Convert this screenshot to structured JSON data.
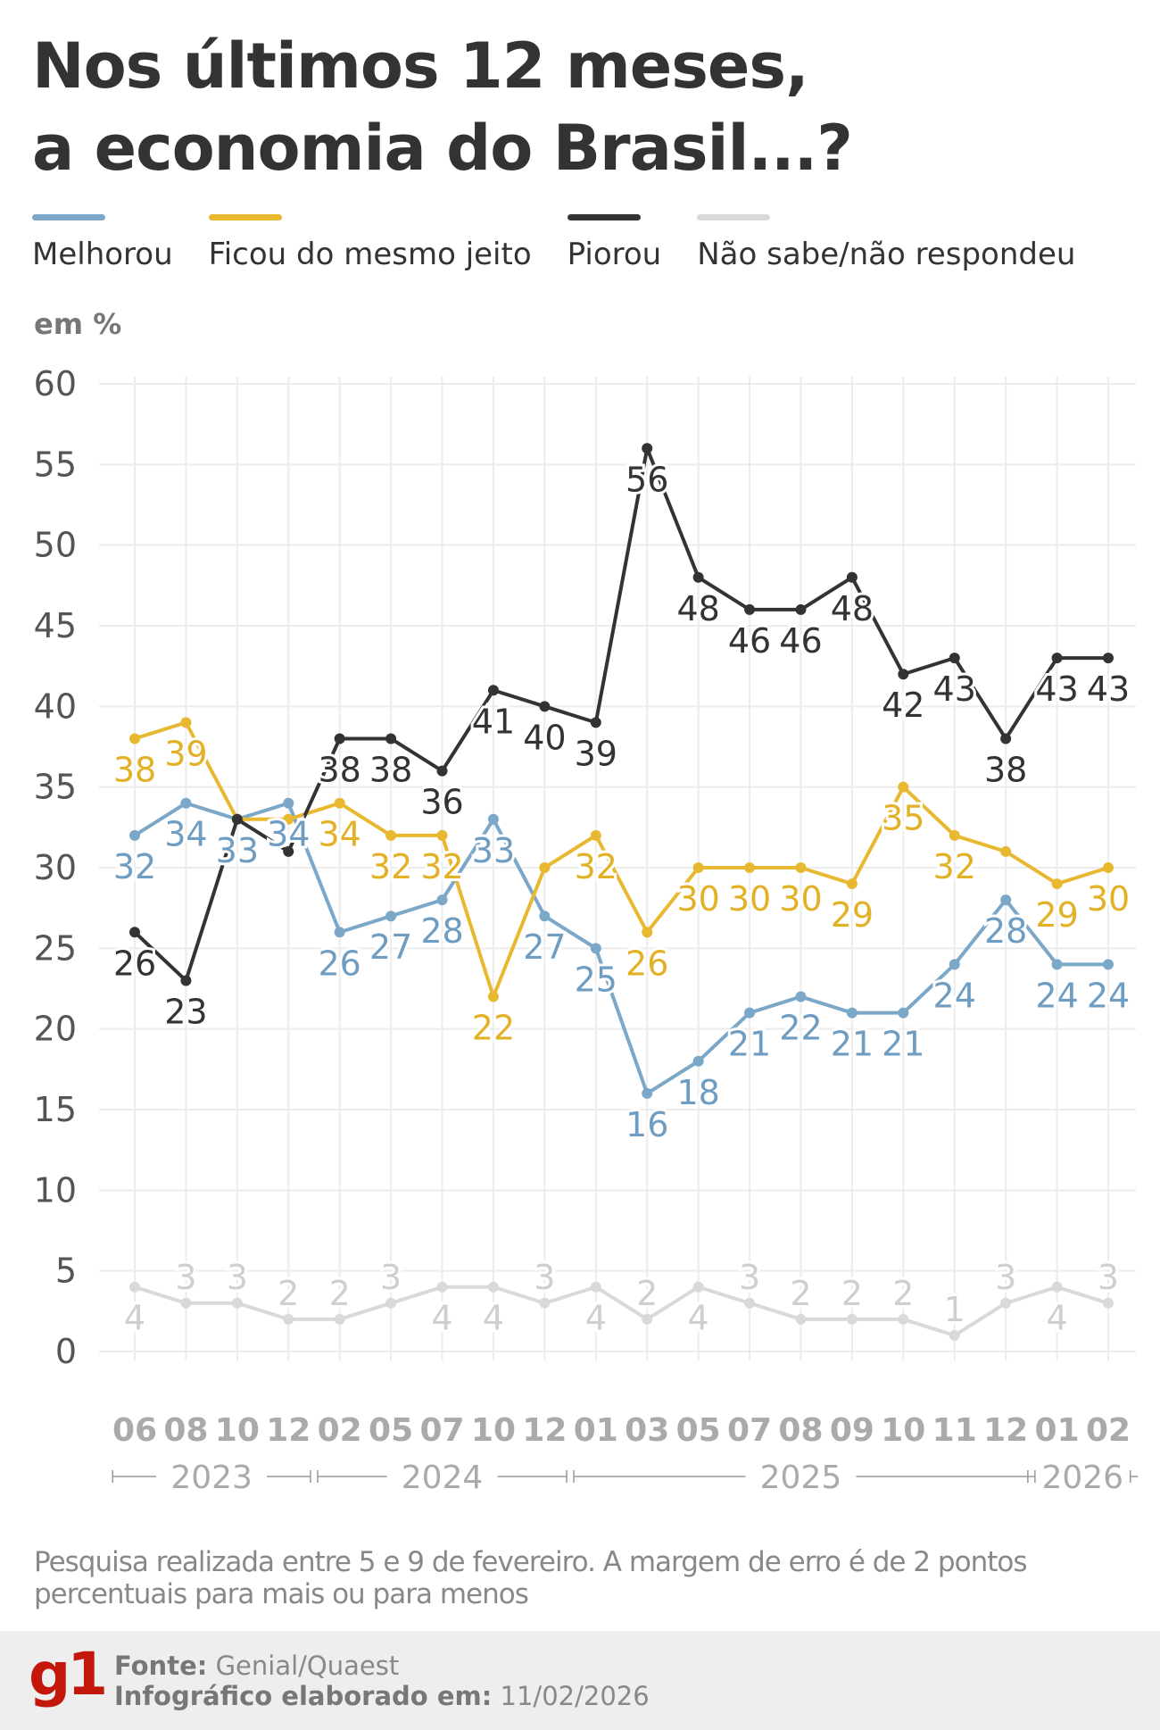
{
  "title_lines": [
    "Nos últimos 12 meses,",
    "a economia do Brasil...?"
  ],
  "unit": "em %",
  "colors": {
    "melhorou": "#7ba7c9",
    "ficou": "#e8b830",
    "piorou": "#333333",
    "nao_sabe": "#d9d9d9"
  },
  "note": "Pesquisa realizada entre 5 e 9 de fevereiro. A margem de erro é de 2 pontos percentuais para mais ou para menos",
  "footer": {
    "logo": "g1",
    "source_label": "Fonte:",
    "source": "Genial/Quaest",
    "date_label": "Infográfico elaborado em:",
    "date": "11/02/2026"
  },
  "chart_data": {
    "type": "line",
    "title": "Nos últimos 12 meses, a economia do Brasil...?",
    "ylabel": "em %",
    "ylim": [
      0,
      60
    ],
    "yticks": [
      0,
      5,
      10,
      15,
      20,
      25,
      30,
      35,
      40,
      45,
      50,
      55,
      60
    ],
    "grid": true,
    "legend": "top",
    "categories": [
      "06",
      "08",
      "10",
      "12",
      "02",
      "05",
      "07",
      "10",
      "12",
      "01",
      "03",
      "05",
      "07",
      "08",
      "09",
      "10",
      "11",
      "12",
      "01",
      "02"
    ],
    "years": [
      {
        "label": "2023",
        "from": 0,
        "to": 3
      },
      {
        "label": "2024",
        "from": 4,
        "to": 8
      },
      {
        "label": "2025",
        "from": 9,
        "to": 17
      },
      {
        "label": "2026",
        "from": 18,
        "to": 19
      }
    ],
    "series": [
      {
        "name": "Melhorou",
        "color": "#7ba7c9",
        "values": [
          32,
          34,
          33,
          34,
          26,
          27,
          28,
          33,
          27,
          25,
          16,
          18,
          21,
          22,
          21,
          21,
          24,
          28,
          24,
          24
        ],
        "labels": [
          "32",
          "34",
          "33",
          "34",
          "26",
          "27",
          "28",
          "33",
          "27",
          "25",
          "16",
          "18",
          "21",
          "22",
          "21",
          "21",
          "24",
          "28",
          "24",
          "24"
        ]
      },
      {
        "name": "Ficou do mesmo jeito",
        "color": "#e8b830",
        "values": [
          38,
          39,
          33,
          33,
          34,
          32,
          32,
          22,
          30,
          32,
          26,
          30,
          30,
          30,
          29,
          35,
          32,
          31,
          29,
          30
        ],
        "labels": [
          "38",
          "39",
          "",
          "",
          "34",
          "32",
          "32",
          "22",
          "",
          "32",
          "26",
          "30",
          "30",
          "30",
          "29",
          "35",
          "32",
          "",
          "29",
          "30"
        ]
      },
      {
        "name": "Piorou",
        "color": "#333333",
        "values": [
          26,
          23,
          33,
          31,
          38,
          38,
          36,
          41,
          40,
          39,
          56,
          48,
          46,
          46,
          48,
          42,
          43,
          38,
          43,
          43
        ],
        "labels": [
          "26",
          "23",
          "",
          "",
          "38",
          "38",
          "36",
          "41",
          "40",
          "39",
          "56",
          "48",
          "46",
          "46",
          "48",
          "42",
          "43",
          "38",
          "43",
          "43"
        ]
      },
      {
        "name": "Não sabe/não respondeu",
        "color": "#d9d9d9",
        "values": [
          4,
          3,
          3,
          2,
          2,
          3,
          4,
          4,
          3,
          4,
          2,
          4,
          3,
          2,
          2,
          2,
          1,
          3,
          4,
          3
        ],
        "labels": [
          "4",
          "3",
          "3",
          "2",
          "2",
          "3",
          "4",
          "4",
          "3",
          "4",
          "2",
          "4",
          "3",
          "2",
          "2",
          "2",
          "1",
          "3",
          "4",
          "3"
        ]
      }
    ]
  }
}
